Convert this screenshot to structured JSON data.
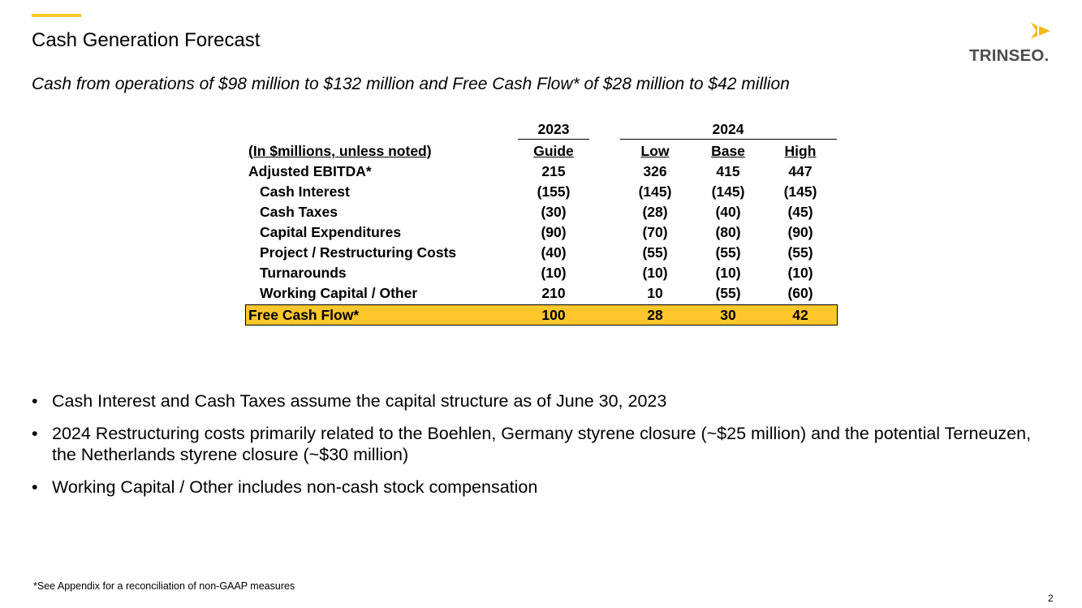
{
  "header": {
    "title": "Cash Generation Forecast",
    "subtitle": "Cash from operations of $98 million to $132 million and Free Cash Flow* of $28 million to $42 million"
  },
  "logo": {
    "text": "TRINSEO",
    "suffix": "."
  },
  "colors": {
    "accent": "#FFC72C",
    "logo_text": "#4D4D4F",
    "logo_mark": "#F5B915"
  },
  "table": {
    "year_2023": "2023",
    "year_2024": "2024",
    "row_header_label": "(In $millions, unless noted)",
    "columns": [
      "Guide",
      "Low",
      "Base",
      "High"
    ],
    "rows": [
      {
        "label": "Adjusted EBITDA*",
        "values": [
          "215",
          "326",
          "415",
          "447"
        ]
      },
      {
        "label": "Cash Interest",
        "values": [
          "(155)",
          "(145)",
          "(145)",
          "(145)"
        ]
      },
      {
        "label": "Cash Taxes",
        "values": [
          "(30)",
          "(28)",
          "(40)",
          "(45)"
        ]
      },
      {
        "label": "Capital Expenditures",
        "values": [
          "(90)",
          "(70)",
          "(80)",
          "(90)"
        ]
      },
      {
        "label": "Project / Restructuring Costs",
        "values": [
          "(40)",
          "(55)",
          "(55)",
          "(55)"
        ]
      },
      {
        "label": "Turnarounds",
        "values": [
          "(10)",
          "(10)",
          "(10)",
          "(10)"
        ]
      },
      {
        "label": "Working Capital / Other",
        "values": [
          "210",
          "10",
          "(55)",
          "(60)"
        ]
      }
    ],
    "total": {
      "label": "Free Cash Flow*",
      "values": [
        "100",
        "28",
        "30",
        "42"
      ]
    }
  },
  "bullets": [
    "Cash Interest and Cash Taxes assume the capital structure as of June 30, 2023",
    "2024 Restructuring costs primarily related to the Boehlen, Germany styrene closure (~$25 million) and the potential Terneuzen, the Netherlands styrene closure (~$30 million)",
    "Working Capital / Other includes non-cash stock compensation"
  ],
  "bullet_glyph": "•",
  "footnote": "*See Appendix for a reconciliation of non-GAAP measures",
  "page_number": "2"
}
